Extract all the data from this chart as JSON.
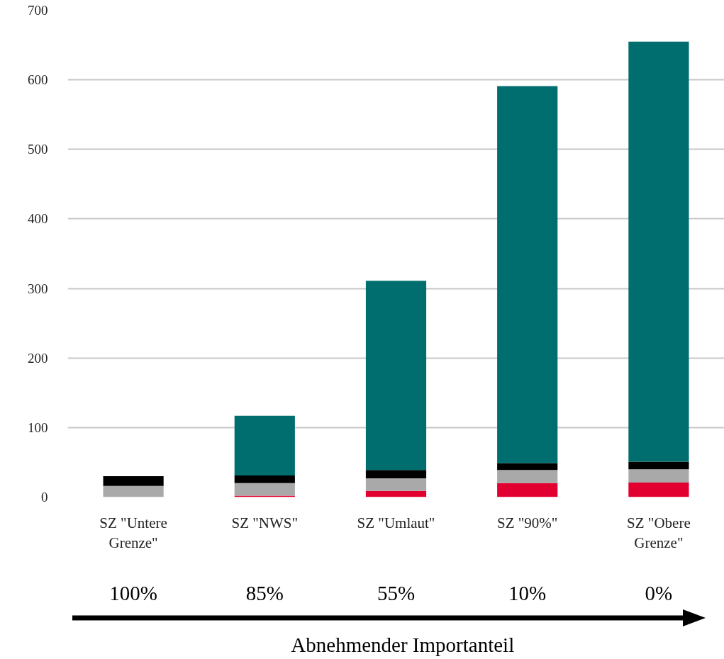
{
  "chart_data": {
    "type": "bar",
    "stacked": true,
    "categories": [
      "SZ \"Untere Grenze\"",
      "SZ \"NWS\"",
      "SZ \"Umlaut\"",
      "SZ \"90%\"",
      "SZ \"Obere Grenze\""
    ],
    "series": [
      {
        "color": "#e20031",
        "values": [
          0,
          2,
          9,
          20,
          21
        ]
      },
      {
        "color": "#a9a9a9",
        "values": [
          16,
          18,
          18,
          19,
          19
        ]
      },
      {
        "color": "#000000",
        "values": [
          14,
          11,
          12,
          10,
          11
        ]
      },
      {
        "color": "#006e6e",
        "values": [
          0,
          86,
          272,
          542,
          604
        ]
      }
    ],
    "ylim": [
      0,
      700
    ],
    "yticks": [
      0,
      100,
      200,
      300,
      400,
      500,
      600,
      700
    ],
    "grid": "y",
    "annotations": [
      "100%",
      "85%",
      "55%",
      "10%",
      "0%",
      "Abnehmender Importanteil"
    ]
  }
}
